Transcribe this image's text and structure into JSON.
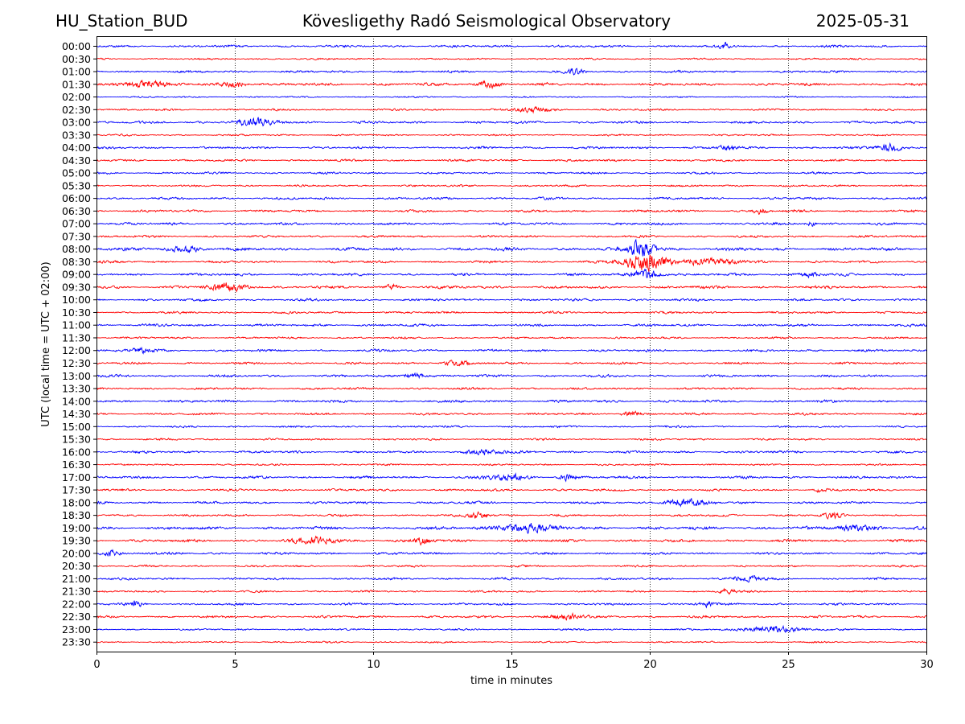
{
  "header": {
    "station": "HU_Station_BUD",
    "title": "Kövesligethy Radó Seismological Observatory",
    "date": "2025-05-31"
  },
  "colors": {
    "trace_a": "#0000ff",
    "trace_b": "#ff0000",
    "grid": "#000000"
  },
  "chart_data": {
    "type": "line",
    "title": "Kövesligethy Radó Seismological Observatory",
    "xlabel": "time in minutes",
    "ylabel": "UTC (local time = UTC + 02:00)",
    "xlim": [
      0,
      30
    ],
    "xticks": [
      "0",
      "5",
      "10",
      "15",
      "20",
      "25",
      "30"
    ],
    "grid": "vertical dotted lines at x ticks",
    "trace_colors_alternate": [
      "blue",
      "red"
    ],
    "rows": [
      "00:00",
      "00:30",
      "01:00",
      "01:30",
      "02:00",
      "02:30",
      "03:00",
      "03:30",
      "04:00",
      "04:30",
      "05:00",
      "05:30",
      "06:00",
      "06:30",
      "07:00",
      "07:30",
      "08:00",
      "08:30",
      "09:00",
      "09:30",
      "10:00",
      "10:30",
      "11:00",
      "11:30",
      "12:00",
      "12:30",
      "13:00",
      "13:30",
      "14:00",
      "14:30",
      "15:00",
      "15:30",
      "16:00",
      "16:30",
      "17:00",
      "17:30",
      "18:00",
      "18:30",
      "19:00",
      "19:30",
      "20:00",
      "20:30",
      "21:00",
      "21:30",
      "22:00",
      "22:30",
      "23:00",
      "23:30"
    ],
    "noise_level": [
      0.3,
      0.22,
      0.28,
      0.35,
      0.18,
      0.25,
      0.32,
      0.22,
      0.3,
      0.28,
      0.25,
      0.26,
      0.3,
      0.3,
      0.32,
      0.28,
      0.4,
      0.3,
      0.32,
      0.35,
      0.3,
      0.28,
      0.32,
      0.25,
      0.3,
      0.28,
      0.3,
      0.28,
      0.32,
      0.28,
      0.25,
      0.25,
      0.3,
      0.22,
      0.32,
      0.28,
      0.3,
      0.28,
      0.38,
      0.35,
      0.3,
      0.25,
      0.28,
      0.25,
      0.28,
      0.3,
      0.22,
      0.2
    ],
    "bursts": [
      {
        "row": "00:00",
        "minute": 22.7,
        "amplitude": 0.8,
        "duration": 0.3
      },
      {
        "row": "01:00",
        "minute": 17.3,
        "amplitude": 0.7,
        "duration": 0.6
      },
      {
        "row": "01:30",
        "minute": 1.7,
        "amplitude": 0.8,
        "duration": 1.5
      },
      {
        "row": "01:30",
        "minute": 5.0,
        "amplitude": 1.0,
        "duration": 0.8
      },
      {
        "row": "01:30",
        "minute": 14.2,
        "amplitude": 0.8,
        "duration": 0.8
      },
      {
        "row": "02:30",
        "minute": 15.8,
        "amplitude": 0.7,
        "duration": 1.2
      },
      {
        "row": "03:00",
        "minute": 5.8,
        "amplitude": 0.9,
        "duration": 1.5
      },
      {
        "row": "04:00",
        "minute": 28.7,
        "amplitude": 1.1,
        "duration": 0.8
      },
      {
        "row": "04:00",
        "minute": 22.8,
        "amplitude": 0.7,
        "duration": 0.6
      },
      {
        "row": "06:30",
        "minute": 24.0,
        "amplitude": 0.7,
        "duration": 0.5
      },
      {
        "row": "07:00",
        "minute": 25.8,
        "amplitude": 0.7,
        "duration": 0.3
      },
      {
        "row": "08:00",
        "minute": 3.2,
        "amplitude": 0.8,
        "duration": 1.2
      },
      {
        "row": "08:00",
        "minute": 19.7,
        "amplitude": 2.2,
        "duration": 1.0
      },
      {
        "row": "08:30",
        "minute": 19.8,
        "amplitude": 2.4,
        "duration": 1.5
      },
      {
        "row": "08:30",
        "minute": 22.0,
        "amplitude": 0.8,
        "duration": 2.5
      },
      {
        "row": "09:00",
        "minute": 19.9,
        "amplitude": 1.3,
        "duration": 1.0
      },
      {
        "row": "09:00",
        "minute": 25.8,
        "amplitude": 0.7,
        "duration": 0.6
      },
      {
        "row": "09:30",
        "minute": 4.8,
        "amplitude": 1.0,
        "duration": 1.4
      },
      {
        "row": "09:30",
        "minute": 10.7,
        "amplitude": 0.7,
        "duration": 0.4
      },
      {
        "row": "12:00",
        "minute": 1.6,
        "amplitude": 0.6,
        "duration": 0.8
      },
      {
        "row": "12:30",
        "minute": 13.0,
        "amplitude": 0.7,
        "duration": 1.0
      },
      {
        "row": "13:00",
        "minute": 11.5,
        "amplitude": 0.7,
        "duration": 0.8
      },
      {
        "row": "14:30",
        "minute": 19.3,
        "amplitude": 0.8,
        "duration": 0.6
      },
      {
        "row": "16:00",
        "minute": 14.0,
        "amplitude": 0.8,
        "duration": 1.2
      },
      {
        "row": "17:00",
        "minute": 14.8,
        "amplitude": 0.9,
        "duration": 1.2
      },
      {
        "row": "17:00",
        "minute": 17.0,
        "amplitude": 0.8,
        "duration": 0.6
      },
      {
        "row": "17:30",
        "minute": 26.2,
        "amplitude": 0.7,
        "duration": 0.4
      },
      {
        "row": "18:00",
        "minute": 21.3,
        "amplitude": 1.0,
        "duration": 1.5
      },
      {
        "row": "18:30",
        "minute": 13.8,
        "amplitude": 0.7,
        "duration": 0.8
      },
      {
        "row": "18:30",
        "minute": 26.6,
        "amplitude": 0.7,
        "duration": 0.6
      },
      {
        "row": "19:00",
        "minute": 15.5,
        "amplitude": 1.0,
        "duration": 2.0
      },
      {
        "row": "19:00",
        "minute": 27.5,
        "amplitude": 0.8,
        "duration": 1.5
      },
      {
        "row": "19:30",
        "minute": 8.0,
        "amplitude": 0.9,
        "duration": 1.5
      },
      {
        "row": "19:30",
        "minute": 11.8,
        "amplitude": 0.8,
        "duration": 0.6
      },
      {
        "row": "20:00",
        "minute": 0.5,
        "amplitude": 0.9,
        "duration": 0.6
      },
      {
        "row": "21:00",
        "minute": 23.5,
        "amplitude": 0.7,
        "duration": 1.0
      },
      {
        "row": "21:30",
        "minute": 22.8,
        "amplitude": 0.7,
        "duration": 0.6
      },
      {
        "row": "22:00",
        "minute": 1.4,
        "amplitude": 0.8,
        "duration": 0.5
      },
      {
        "row": "22:00",
        "minute": 22.0,
        "amplitude": 0.7,
        "duration": 0.6
      },
      {
        "row": "22:30",
        "minute": 17.0,
        "amplitude": 0.8,
        "duration": 1.2
      },
      {
        "row": "23:00",
        "minute": 24.5,
        "amplitude": 0.9,
        "duration": 2.0
      }
    ]
  }
}
